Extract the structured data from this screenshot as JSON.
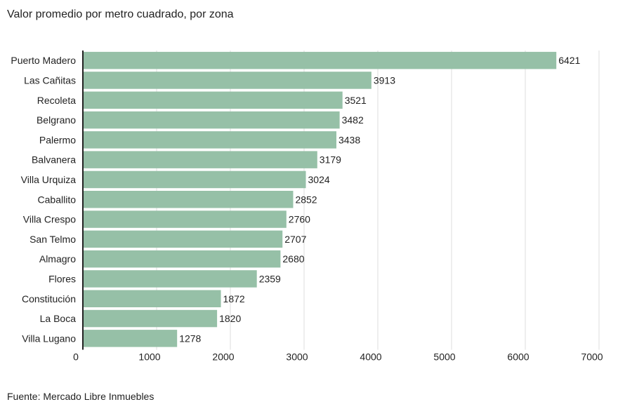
{
  "chart_data": {
    "type": "bar",
    "orientation": "horizontal",
    "title": "Valor promedio por metro cuadrado, por zona",
    "source": "Fuente: Mercado Libre Inmuebles",
    "categories": [
      "Puerto Madero",
      "Las Cañitas",
      "Recoleta",
      "Belgrano",
      "Palermo",
      "Balvanera",
      "Villa Urquiza",
      "Caballito",
      "Villa Crespo",
      "San Telmo",
      "Almagro",
      "Flores",
      "Constitución",
      "La Boca",
      "Villa Lugano"
    ],
    "values": [
      6421,
      3913,
      3521,
      3482,
      3438,
      3179,
      3024,
      2852,
      2760,
      2707,
      2680,
      2359,
      1872,
      1820,
      1278
    ],
    "xlim": [
      0,
      7000
    ],
    "xticks": [
      0,
      1000,
      2000,
      3000,
      4000,
      5000,
      6000,
      7000
    ],
    "grid": true,
    "bar_color": "#96c0a7",
    "grid_color": "#dddddd"
  }
}
